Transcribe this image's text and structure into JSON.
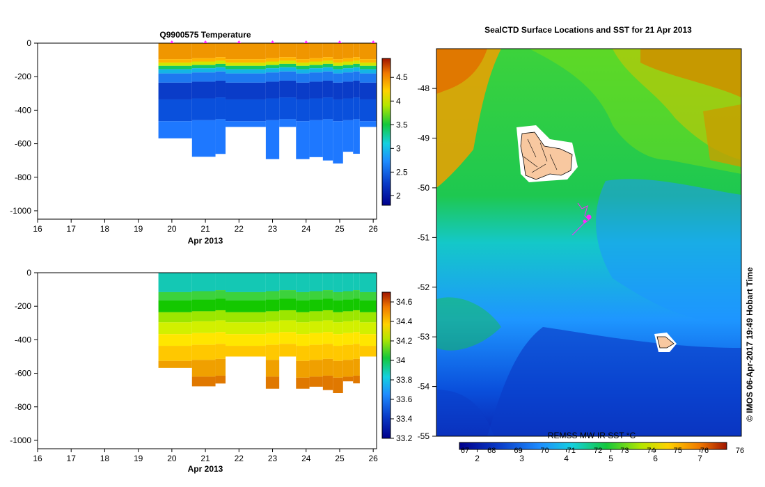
{
  "charts": [
    {
      "type": "heatmap",
      "title": "Q9900575  Temperature",
      "x_ticks": [
        "16",
        "17",
        "18",
        "19",
        "20",
        "21",
        "22",
        "23",
        "24",
        "25",
        "26"
      ],
      "x_label": "Apr 2013",
      "y_ticks": [
        "0",
        "-200",
        "-400",
        "-600",
        "-800",
        "-1000"
      ],
      "xlim": [
        16,
        26.1
      ],
      "ylim": [
        -1050,
        0
      ],
      "colorbar": {
        "ticks": [
          "2",
          "2.5",
          "3",
          "3.5",
          "4",
          "4.5"
        ],
        "range": [
          1.8,
          4.9
        ]
      },
      "profiles": [
        {
          "t": 19.6,
          "b": -568
        },
        {
          "t": 20.6,
          "b": -678
        },
        {
          "t": 21.3,
          "b": -661
        },
        {
          "t": 21.6,
          "b": -500
        },
        {
          "t": 22.8,
          "b": -692
        },
        {
          "t": 23.2,
          "b": -500
        },
        {
          "t": 23.7,
          "b": -692
        },
        {
          "t": 24.1,
          "b": -680
        },
        {
          "t": 24.5,
          "b": -700
        },
        {
          "t": 24.8,
          "b": -718
        },
        {
          "t": 25.1,
          "b": -648
        },
        {
          "t": 25.4,
          "b": -660
        },
        {
          "t": 25.6,
          "b": -500
        },
        {
          "t": 26.1,
          "b": null
        }
      ],
      "markers_x": [
        20,
        21,
        22,
        23,
        24,
        25,
        26
      ]
    },
    {
      "type": "heatmap",
      "title": "",
      "x_ticks": [
        "16",
        "17",
        "18",
        "19",
        "20",
        "21",
        "22",
        "23",
        "24",
        "25",
        "26"
      ],
      "x_label": "Apr 2013",
      "y_ticks": [
        "0",
        "-200",
        "-400",
        "-600",
        "-800",
        "-1000"
      ],
      "xlim": [
        16,
        26.1
      ],
      "ylim": [
        -1050,
        0
      ],
      "colorbar": {
        "ticks": [
          "33.2",
          "33.4",
          "33.6",
          "33.8",
          "34",
          "34.2",
          "34.4",
          "34.6"
        ],
        "range": [
          33.2,
          34.7
        ]
      }
    },
    {
      "type": "heatmap",
      "title": "SealCTD Surface Locations and SST for 21 Apr 2013",
      "y_ticks": [
        "-48",
        "-49",
        "-50",
        "-51",
        "-52",
        "-53",
        "-54",
        "-55"
      ],
      "ylim": [
        -55,
        -47.2
      ],
      "colorbar": {
        "label": "REMSS MW-IR SST °C",
        "ticks_bottom": [
          "2",
          "3",
          "4",
          "5",
          "6",
          "7"
        ],
        "ticks_bottom_range": [
          1.6,
          7.6
        ],
        "ticks_top": [
          "67",
          "68",
          "69",
          "70",
          "71",
          "72",
          "73",
          "74",
          "75",
          "76"
        ]
      },
      "side_label": "© IMOS 06-Apr-2017 19:49 Hobart Time"
    }
  ]
}
